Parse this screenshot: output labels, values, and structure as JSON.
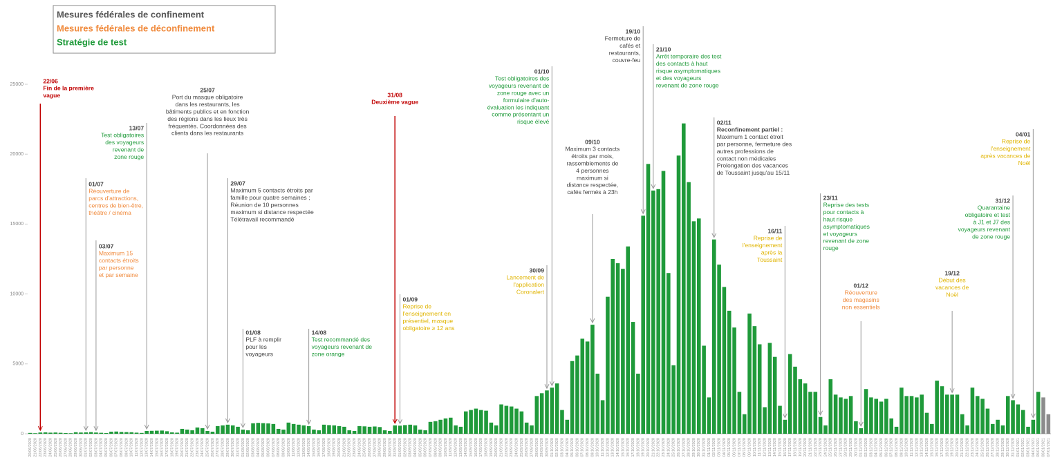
{
  "chart_data": {
    "type": "bar",
    "legend": [
      {
        "label": "Mesures fédérales de confinement",
        "color": "#555555"
      },
      {
        "label": "Mesures fédérales de déconfinement",
        "color": "#f08a3c"
      },
      {
        "label": "Stratégie de test",
        "color": "#1f9a3a"
      }
    ],
    "color": "#1f9a3a",
    "recent_color": "#8c8c8c",
    "recent_count": 2,
    "ylim": [
      0,
      25000
    ],
    "yticks": [
      0,
      5000,
      10000,
      15000,
      20000,
      25000
    ],
    "categories": [
      "20/06/2020",
      "21/06/2020",
      "22/06/2020",
      "23/06/2020",
      "24/06/2020",
      "25/06/2020",
      "26/06/2020",
      "27/06/2020",
      "28/06/2020",
      "29/06/2020",
      "30/06/2020",
      "01/07/2020",
      "02/07/2020",
      "03/07/2020",
      "04/07/2020",
      "05/07/2020",
      "06/07/2020",
      "07/07/2020",
      "08/07/2020",
      "09/07/2020",
      "10/07/2020",
      "11/07/2020",
      "12/07/2020",
      "13/07/2020",
      "14/07/2020",
      "15/07/2020",
      "16/07/2020",
      "17/07/2020",
      "18/07/2020",
      "19/07/2020",
      "20/07/2020",
      "21/07/2020",
      "22/07/2020",
      "23/07/2020",
      "24/07/2020",
      "25/07/2020",
      "26/07/2020",
      "27/07/2020",
      "28/07/2020",
      "29/07/2020",
      "30/07/2020",
      "31/07/2020",
      "01/08/2020",
      "02/08/2020",
      "03/08/2020",
      "04/08/2020",
      "05/08/2020",
      "06/08/2020",
      "07/08/2020",
      "08/08/2020",
      "09/08/2020",
      "10/08/2020",
      "11/08/2020",
      "12/08/2020",
      "13/08/2020",
      "14/08/2020",
      "15/08/2020",
      "16/08/2020",
      "17/08/2020",
      "18/08/2020",
      "19/08/2020",
      "20/08/2020",
      "21/08/2020",
      "22/08/2020",
      "23/08/2020",
      "24/08/2020",
      "25/08/2020",
      "26/08/2020",
      "27/08/2020",
      "28/08/2020",
      "29/08/2020",
      "30/08/2020",
      "31/08/2020",
      "01/09/2020",
      "02/09/2020",
      "03/09/2020",
      "04/09/2020",
      "05/09/2020",
      "06/09/2020",
      "07/09/2020",
      "08/09/2020",
      "09/09/2020",
      "10/09/2020",
      "11/09/2020",
      "12/09/2020",
      "13/09/2020",
      "14/09/2020",
      "15/09/2020",
      "16/09/2020",
      "17/09/2020",
      "18/09/2020",
      "19/09/2020",
      "20/09/2020",
      "21/09/2020",
      "22/09/2020",
      "23/09/2020",
      "24/09/2020",
      "25/09/2020",
      "26/09/2020",
      "27/09/2020",
      "28/09/2020",
      "29/09/2020",
      "30/09/2020",
      "01/10/2020",
      "02/10/2020",
      "03/10/2020",
      "04/10/2020",
      "05/10/2020",
      "06/10/2020",
      "07/10/2020",
      "08/10/2020",
      "09/10/2020",
      "10/10/2020",
      "11/10/2020",
      "12/10/2020",
      "13/10/2020",
      "14/10/2020",
      "15/10/2020",
      "16/10/2020",
      "17/10/2020",
      "18/10/2020",
      "19/10/2020",
      "20/10/2020",
      "21/10/2020",
      "22/10/2020",
      "23/10/2020",
      "24/10/2020",
      "25/10/2020",
      "26/10/2020",
      "27/10/2020",
      "28/10/2020",
      "29/10/2020",
      "30/10/2020",
      "31/10/2020",
      "01/11/2020",
      "02/11/2020",
      "03/11/2020",
      "04/11/2020",
      "05/11/2020",
      "06/11/2020",
      "07/11/2020",
      "08/11/2020",
      "09/11/2020",
      "10/11/2020",
      "11/11/2020",
      "12/11/2020",
      "13/11/2020",
      "14/11/2020",
      "15/11/2020",
      "16/11/2020",
      "17/11/2020",
      "18/11/2020",
      "19/11/2020",
      "20/11/2020",
      "21/11/2020",
      "22/11/2020",
      "23/11/2020",
      "24/11/2020",
      "25/11/2020",
      "26/11/2020",
      "27/11/2020",
      "28/11/2020",
      "29/11/2020",
      "30/11/2020",
      "01/12/2020",
      "02/12/2020",
      "03/12/2020",
      "04/12/2020",
      "05/12/2020",
      "06/12/2020",
      "07/12/2020",
      "08/12/2020",
      "09/12/2020",
      "10/12/2020",
      "11/12/2020",
      "12/12/2020",
      "13/12/2020",
      "14/12/2020",
      "15/12/2020",
      "16/12/2020",
      "17/12/2020",
      "18/12/2020",
      "19/12/2020",
      "20/12/2020",
      "21/12/2020",
      "22/12/2020",
      "23/12/2020",
      "24/12/2020",
      "25/12/2020",
      "26/12/2020",
      "27/12/2020",
      "28/12/2020",
      "29/12/2020",
      "30/12/2020",
      "31/12/2020",
      "01/01/2021",
      "02/01/2021",
      "03/01/2021",
      "04/01/2021",
      "05/01/2021",
      "06/01/2021",
      "07/01/2021"
    ],
    "values": [
      60,
      40,
      90,
      100,
      80,
      90,
      70,
      50,
      40,
      110,
      90,
      100,
      120,
      90,
      70,
      50,
      150,
      160,
      130,
      120,
      110,
      80,
      60,
      200,
      210,
      220,
      230,
      180,
      100,
      80,
      350,
      300,
      250,
      450,
      400,
      200,
      150,
      550,
      600,
      650,
      600,
      500,
      300,
      250,
      750,
      780,
      760,
      740,
      700,
      350,
      300,
      800,
      700,
      650,
      600,
      550,
      300,
      250,
      650,
      620,
      600,
      550,
      500,
      250,
      200,
      550,
      530,
      500,
      520,
      480,
      250,
      200,
      600,
      580,
      620,
      650,
      600,
      300,
      250,
      850,
      900,
      1000,
      1100,
      1150,
      600,
      500,
      1600,
      1700,
      1800,
      1700,
      1650,
      800,
      600,
      2100,
      2000,
      1950,
      1800,
      1600,
      800,
      600,
      2700,
      2900,
      3100,
      3300,
      3600,
      1700,
      1000,
      5200,
      5600,
      6800,
      6600,
      7800,
      4300,
      2400,
      9800,
      12500,
      12200,
      11800,
      13400,
      8000,
      4300,
      15600,
      19300,
      17400,
      17500,
      18800,
      11500,
      4900,
      19900,
      22200,
      18000,
      15200,
      15400,
      6300,
      2600,
      13900,
      12100,
      10500,
      8800,
      7600,
      3000,
      1400,
      8600,
      7700,
      6400,
      1900,
      6500,
      5500,
      2000,
      1000,
      5700,
      4800,
      3900,
      3600,
      3000,
      3000,
      1200,
      600,
      3900,
      2800,
      2600,
      2500,
      2700,
      900,
      400,
      3200,
      2600,
      2500,
      2300,
      2500,
      1100,
      500,
      3300,
      2700,
      2700,
      2600,
      2800,
      1500,
      700,
      3800,
      3400,
      2800,
      2800,
      2800,
      1400,
      600,
      3300,
      2700,
      2500,
      1800,
      700,
      1000,
      600,
      2700,
      2400,
      2100,
      1700,
      500,
      1000,
      3000,
      2600,
      1400
    ],
    "annotations": [
      {
        "date": "22/06",
        "color": "#c00000",
        "bold": true,
        "lines": [
          "Fin de la première",
          "vague"
        ]
      },
      {
        "date": "01/07",
        "color": "#f08a3c",
        "lines": [
          "Réouverture de",
          "parcs d'attractions,",
          "centres de bien-être,",
          "théâtre / cinéma"
        ]
      },
      {
        "date": "03/07",
        "color": "#f08a3c",
        "lines": [
          "Maximum 15",
          "contacts étroits",
          "par personne",
          "et par semaine"
        ]
      },
      {
        "date": "13/07",
        "color": "#1f9a3a",
        "lines": [
          "Test obligatoires",
          "des voyageurs",
          "revenant de",
          "zone rouge"
        ]
      },
      {
        "date": "25/07",
        "color": "#444444",
        "lines": [
          "Port du masque obligatoire",
          "dans les restaurants, les",
          "bâtiments publics et en fonction",
          "des régions dans les lieux très",
          "fréquentés. Coordonnées des",
          "clients dans les restaurants"
        ]
      },
      {
        "date": "29/07",
        "color": "#444444",
        "lines": [
          "Maximum 5 contacts étroits par",
          "famille pour quatre semaines ;",
          "Réunion de 10 personnes",
          "maximum si distance respectée",
          "Télétravail recommandé"
        ]
      },
      {
        "date": "01/08",
        "color": "#444444",
        "lines": [
          "PLF à remplir",
          "pour les",
          "voyageurs"
        ]
      },
      {
        "date": "14/08",
        "color": "#1f9a3a",
        "lines": [
          "Test recommandé des",
          "voyageurs revenant de",
          "zone orange"
        ]
      },
      {
        "date": "31/08",
        "color": "#c00000",
        "bold": true,
        "lines": [
          "Deuxième vague"
        ]
      },
      {
        "date": "01/09",
        "color": "#e0b400",
        "lines": [
          "Reprise de",
          "l'enseignement en",
          "présentiel, masque",
          "obligatoire ≥ 12 ans"
        ]
      },
      {
        "date": "30/09",
        "color": "#e0b400",
        "lines": [
          "Lancement de",
          "l'application",
          "Coronalert"
        ]
      },
      {
        "date": "01/10",
        "color": "#1f9a3a",
        "lines": [
          "Test obligatoires des",
          "voyageurs revenant de",
          "zone rouge avec un",
          "formulaire d'auto-",
          "évaluation les indiquant",
          "comme présentant un",
          "risque élevé"
        ]
      },
      {
        "date": "09/10",
        "color": "#444444",
        "lines": [
          "Maximum 3 contacts",
          "étroits par mois,",
          "rassemblements de",
          "4 personnes",
          "maximum si",
          "distance respectée,",
          "cafés fermés à 23h"
        ]
      },
      {
        "date": "19/10",
        "color": "#444444",
        "lines": [
          "Fermeture de",
          "cafés et",
          "restaurants,",
          "couvre-feu"
        ]
      },
      {
        "date": "21/10",
        "color": "#1f9a3a",
        "lines": [
          "Arrêt temporaire des test",
          "des contacts à haut",
          "risque asymptomatiques",
          "et des voyageurs",
          "revenant de zone rouge"
        ]
      },
      {
        "date": "02/11",
        "color": "#444444",
        "heading": "Reconfinement partiel :",
        "lines": [
          "Maximum 1 contact étroit",
          "par personne, fermeture des",
          "autres professions de",
          "contact non médicales",
          "Prolongation des vacances",
          "de Toussaint jusqu'au 15/11"
        ]
      },
      {
        "date": "16/11",
        "color": "#e0b400",
        "lines": [
          "Reprise de",
          "l'enseignement",
          "après la",
          "Toussaint"
        ]
      },
      {
        "date": "23/11",
        "color": "#1f9a3a",
        "lines": [
          "Reprise des tests",
          "pour contacts à",
          "haut risque",
          "asymptomatiques",
          "et voyageurs",
          "revenant de zone",
          "rouge"
        ]
      },
      {
        "date": "01/12",
        "color": "#f08a3c",
        "lines": [
          "Réouverture",
          "des magasins",
          "non essentiels"
        ]
      },
      {
        "date": "19/12",
        "color": "#e0b400",
        "lines": [
          "Début des",
          "vacances de",
          "Noël"
        ]
      },
      {
        "date": "31/12",
        "color": "#1f9a3a",
        "lines": [
          "Quarantaine",
          "obligatoire et test",
          "à J1 et J7 des",
          "voyageurs revenant",
          "de zone rouge"
        ]
      },
      {
        "date": "04/01",
        "color": "#e0b400",
        "lines": [
          "Reprise de",
          "l'enseignement",
          "après vacances de",
          "Noël"
        ]
      }
    ]
  }
}
